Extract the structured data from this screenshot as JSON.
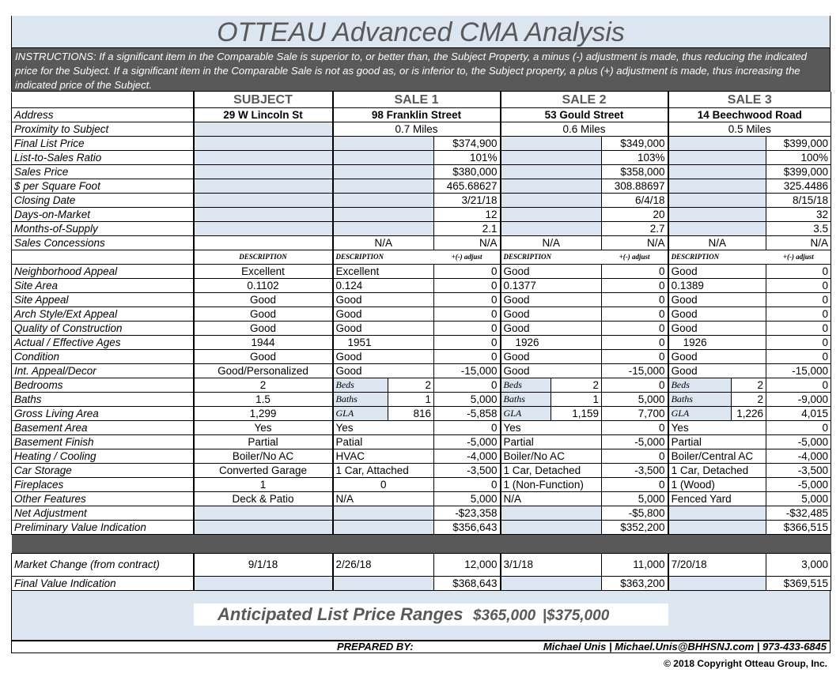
{
  "title": "OTTEAU Advanced CMA Analysis",
  "instructions": "INSTRUCTIONS:  If a significant item in the Comparable Sale is superior to, or better than, the Subject Property, a minus (-) adjustment is made, thus reducing the indicated price for the Subject.  If a significant item in the Comparable Sale is not as good as, or is inferior to, the Subject property, a plus (+) adjustment is made, thus increasing the indicated price of the Subject.",
  "headers": {
    "subject": "SUBJECT",
    "sale1": "SALE 1",
    "sale2": "SALE 2",
    "sale3": "SALE 3"
  },
  "labels": {
    "address": "Address",
    "proximity": "Proximity to Subject",
    "final_list": "Final List Price",
    "list_ratio": "List-to-Sales Ratio",
    "sales_price": "Sales Price",
    "per_sqft": "  $ per Square Foot",
    "closing": "Closing Date",
    "dom": "Days-on-Market",
    "mos": "Months-of-Supply",
    "concessions": "Sales Concessions",
    "neighborhood": "Neighborhood Appeal",
    "site_area": "Site Area",
    "site_appeal": "Site Appeal",
    "arch": "Arch Style/Ext Appeal",
    "quality": "Quality of Construction",
    "ages": "Actual / Effective Ages",
    "condition": "Condition",
    "int_appeal": "Int. Appeal/Decor",
    "bedrooms": "Bedrooms",
    "baths": "Baths",
    "gla": "Gross Living Area",
    "bsmt_area": "Basement Area",
    "bsmt_finish": "Basement Finish",
    "heating": "Heating / Cooling",
    "car": "Car Storage",
    "fireplaces": "Fireplaces",
    "other": "Other Features",
    "net_adj": "Net Adjustment",
    "prelim": "Preliminary Value Indication",
    "market": "Market Change (from contract)",
    "final_value": "Final Value Indication",
    "description": "DESCRIPTION",
    "adjust": "+(-) adjust",
    "beds": "Beds",
    "baths_mini": "Baths",
    "gla_mini": "GLA"
  },
  "subject": {
    "address": "29 W Lincoln St",
    "neighborhood": "Excellent",
    "site_area": "0.1102",
    "site_appeal": "Good",
    "arch": "Good",
    "quality": "Good",
    "ages": "1944",
    "condition": "Good",
    "int_appeal": "Good/Personalized",
    "bedrooms": "2",
    "baths": "1.5",
    "gla": "1,299",
    "bsmt_area": "Yes",
    "bsmt_finish": "Partial",
    "heating": "Boiler/No AC",
    "car": "Converted Garage",
    "fireplaces": "1",
    "other": "Deck & Patio",
    "market": "9/1/18"
  },
  "sales": [
    {
      "address": "98 Franklin Street",
      "proximity": "0.7 Miles",
      "final_list": "$374,900",
      "list_ratio": "101%",
      "sales_price": "$380,000",
      "per_sqft": "465.68627",
      "closing": "3/21/18",
      "dom": "12",
      "mos": "2.1",
      "concessions_desc": "N/A",
      "concessions_adj": "N/A",
      "neighborhood": [
        "Excellent",
        "0"
      ],
      "site_area": [
        "0.124",
        "0"
      ],
      "site_appeal": [
        "Good",
        "0"
      ],
      "arch": [
        "Good",
        "0"
      ],
      "quality": [
        "Good",
        "0"
      ],
      "ages": [
        "1951",
        "0"
      ],
      "condition": [
        "Good",
        "0"
      ],
      "int_appeal": [
        "Good",
        "-15,000"
      ],
      "bedrooms": [
        "2",
        "0"
      ],
      "baths": [
        "1",
        "5,000"
      ],
      "gla": [
        "816",
        "-5,858"
      ],
      "bsmt_area": [
        "Yes",
        "0"
      ],
      "bsmt_finish": [
        "Patial",
        "-5,000"
      ],
      "heating": [
        "HVAC",
        "-4,000"
      ],
      "car": [
        "1 Car, Attached",
        "-3,500"
      ],
      "fireplaces": [
        "0",
        "0"
      ],
      "other": [
        "N/A",
        "5,000"
      ],
      "net_adj": "-$23,358",
      "prelim": "$356,643",
      "market": [
        "2/26/18",
        "12,000"
      ],
      "final_value": "$368,643"
    },
    {
      "address": "53 Gould Street",
      "proximity": "0.6 Miles",
      "final_list": "$349,000",
      "list_ratio": "103%",
      "sales_price": "$358,000",
      "per_sqft": "308.88697",
      "closing": "6/4/18",
      "dom": "20",
      "mos": "2.7",
      "concessions_desc": "N/A",
      "concessions_adj": "N/A",
      "neighborhood": [
        "Good",
        "0"
      ],
      "site_area": [
        "0.1377",
        "0"
      ],
      "site_appeal": [
        "Good",
        "0"
      ],
      "arch": [
        "Good",
        "0"
      ],
      "quality": [
        "Good",
        "0"
      ],
      "ages": [
        "1926",
        "0"
      ],
      "condition": [
        "Good",
        "0"
      ],
      "int_appeal": [
        "Good",
        "-15,000"
      ],
      "bedrooms": [
        "2",
        "0"
      ],
      "baths": [
        "1",
        "5,000"
      ],
      "gla": [
        "1,159",
        "7,700"
      ],
      "bsmt_area": [
        "Yes",
        "0"
      ],
      "bsmt_finish": [
        "Partial",
        "-5,000"
      ],
      "heating": [
        "Boiler/No AC",
        "0"
      ],
      "car": [
        "1 Car, Detached",
        "-3,500"
      ],
      "fireplaces": [
        "1 (Non-Function)",
        "0"
      ],
      "other": [
        "N/A",
        "5,000"
      ],
      "net_adj": "-$5,800",
      "prelim": "$352,200",
      "market": [
        "3/1/18",
        "11,000"
      ],
      "final_value": "$363,200"
    },
    {
      "address": "14 Beechwood Road",
      "proximity": "0.5 Miles",
      "final_list": "$399,000",
      "list_ratio": "100%",
      "sales_price": "$399,000",
      "per_sqft": "325.4486",
      "closing": "8/15/18",
      "dom": "32",
      "mos": "3.5",
      "concessions_desc": "N/A",
      "concessions_adj": "N/A",
      "neighborhood": [
        "Good",
        "0"
      ],
      "site_area": [
        "0.1389",
        "0"
      ],
      "site_appeal": [
        "Good",
        "0"
      ],
      "arch": [
        "Good",
        "0"
      ],
      "quality": [
        "Good",
        "0"
      ],
      "ages": [
        "1926",
        "0"
      ],
      "condition": [
        "Good",
        "0"
      ],
      "int_appeal": [
        "Good",
        "-15,000"
      ],
      "bedrooms": [
        "2",
        "0"
      ],
      "baths": [
        "2",
        "-9,000"
      ],
      "gla": [
        "1,226",
        "4,015"
      ],
      "bsmt_area": [
        "Yes",
        "0"
      ],
      "bsmt_finish": [
        "Partial",
        "-5,000"
      ],
      "heating": [
        "Boiler/Central AC",
        "-4,000"
      ],
      "car": [
        "1 Car, Detached",
        "-3,500"
      ],
      "fireplaces": [
        "1 (Wood)",
        "-5,000"
      ],
      "other": [
        "Fenced Yard",
        "5,000"
      ],
      "net_adj": "-$32,485",
      "prelim": "$366,515",
      "market": [
        "7/20/18",
        "3,000"
      ],
      "final_value": "$369,515"
    }
  ],
  "range": {
    "title": "Anticipated List Price Ranges",
    "low": "$365,000",
    "sep": "|",
    "high": "$375,000"
  },
  "prepared": {
    "label": "PREPARED BY:",
    "value": "Michael Unis | Michael.Unis@BHHSNJ.com | 973-433-6845"
  },
  "copyright": "© 2018 Copyright Otteau Group, Inc."
}
